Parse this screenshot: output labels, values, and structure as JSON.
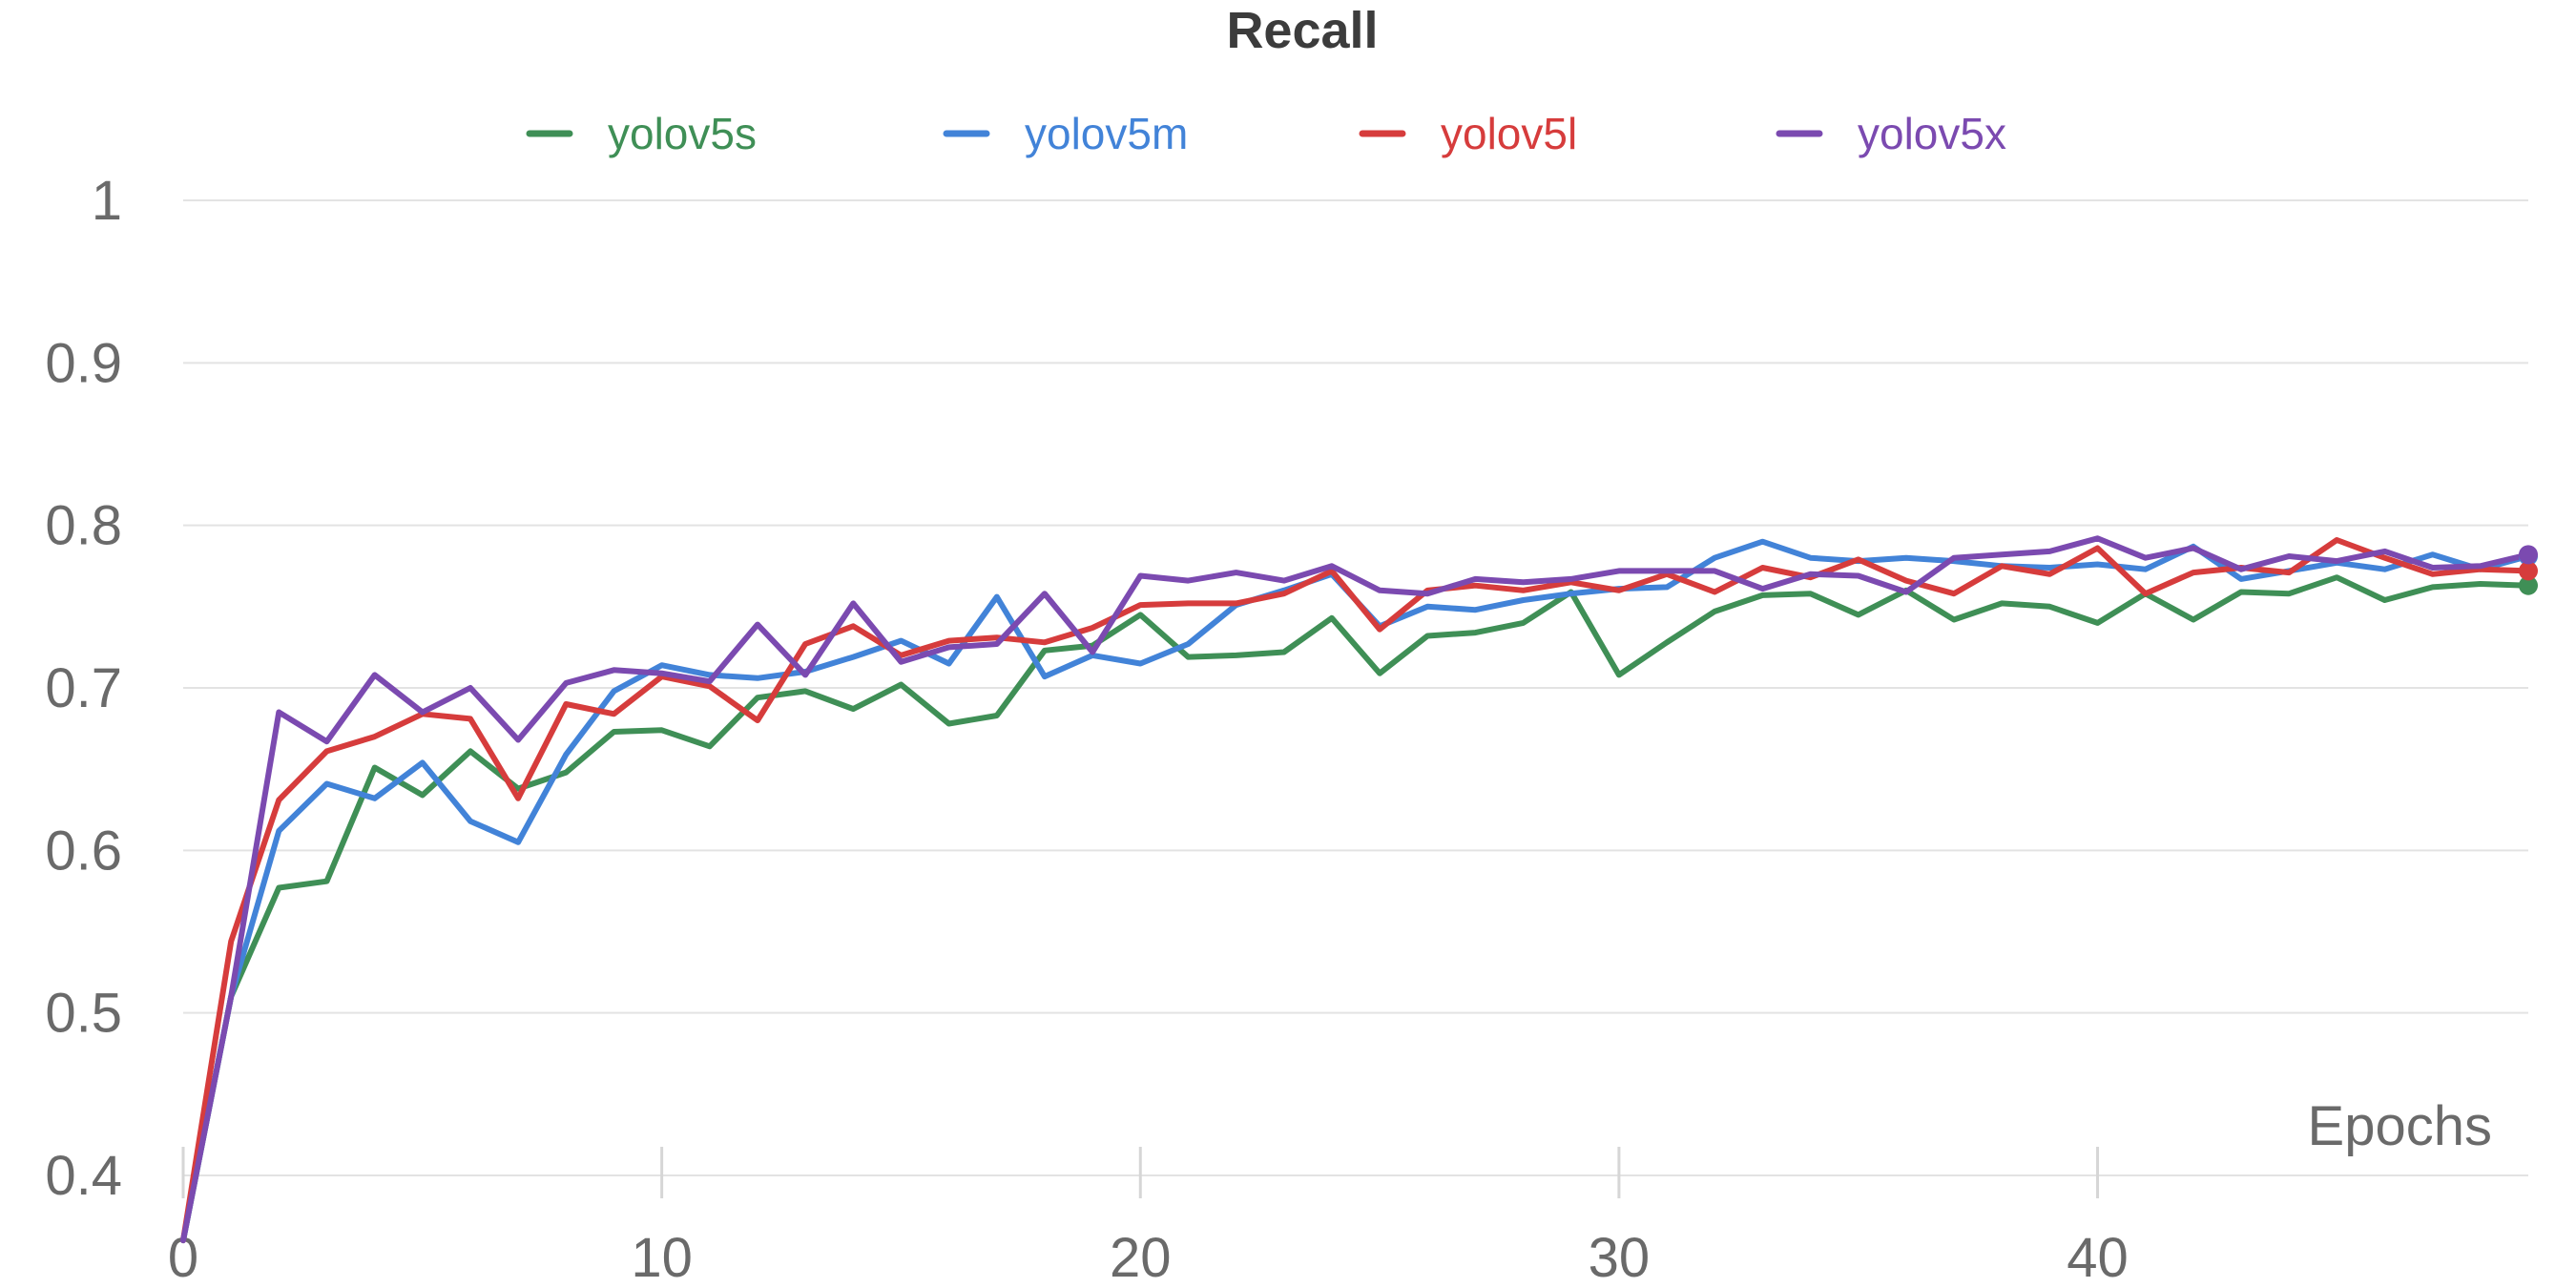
{
  "chart_data": {
    "type": "line",
    "title": "Recall",
    "xlabel": "Epochs",
    "ylabel": "",
    "xlim": [
      0,
      49
    ],
    "ylim": [
      0.4,
      1.0
    ],
    "yticks": [
      "0.4",
      "0.5",
      "0.6",
      "0.7",
      "0.8",
      "0.9",
      "1"
    ],
    "xticks": [
      "0",
      "10",
      "20",
      "30",
      "40"
    ],
    "grid": true,
    "legend": "top-center",
    "series": [
      {
        "name": "yolov5s",
        "color": "#3f8f56",
        "values": [
          0.36,
          0.51,
          0.577,
          0.581,
          0.651,
          0.634,
          0.661,
          0.638,
          0.648,
          0.673,
          0.674,
          0.664,
          0.694,
          0.698,
          0.687,
          0.702,
          0.678,
          0.683,
          0.723,
          0.726,
          0.745,
          0.719,
          0.72,
          0.722,
          0.743,
          0.709,
          0.732,
          0.734,
          0.74,
          0.759,
          0.708,
          0.728,
          0.747,
          0.757,
          0.758,
          0.745,
          0.76,
          0.742,
          0.752,
          0.75,
          0.74,
          0.758,
          0.742,
          0.759,
          0.758,
          0.768,
          0.754,
          0.762,
          0.764,
          0.763
        ]
      },
      {
        "name": "yolov5m",
        "color": "#4283d8",
        "values": [
          0.36,
          0.51,
          0.612,
          0.641,
          0.632,
          0.654,
          0.618,
          0.605,
          0.659,
          0.698,
          0.714,
          0.708,
          0.706,
          0.71,
          0.719,
          0.729,
          0.715,
          0.756,
          0.707,
          0.72,
          0.715,
          0.727,
          0.751,
          0.76,
          0.77,
          0.738,
          0.75,
          0.748,
          0.754,
          0.758,
          0.761,
          0.762,
          0.78,
          0.79,
          0.78,
          0.778,
          0.78,
          0.778,
          0.775,
          0.774,
          0.776,
          0.773,
          0.787,
          0.767,
          0.772,
          0.777,
          0.773,
          0.782,
          0.773,
          0.781
        ]
      },
      {
        "name": "yolov5l",
        "color": "#d63c3c",
        "values": [
          0.36,
          0.544,
          0.631,
          0.661,
          0.67,
          0.684,
          0.681,
          0.632,
          0.69,
          0.684,
          0.707,
          0.701,
          0.68,
          0.727,
          0.738,
          0.72,
          0.729,
          0.731,
          0.728,
          0.737,
          0.751,
          0.752,
          0.752,
          0.758,
          0.772,
          0.736,
          0.76,
          0.763,
          0.76,
          0.765,
          0.76,
          0.77,
          0.759,
          0.774,
          0.768,
          0.779,
          0.766,
          0.758,
          0.775,
          0.77,
          0.786,
          0.758,
          0.771,
          0.774,
          0.771,
          0.791,
          0.78,
          0.77,
          0.773,
          0.772
        ]
      },
      {
        "name": "yolov5x",
        "color": "#7b4ab0",
        "values": [
          0.36,
          0.51,
          0.685,
          0.667,
          0.708,
          0.685,
          0.7,
          0.668,
          0.703,
          0.711,
          0.709,
          0.704,
          0.739,
          0.708,
          0.752,
          0.716,
          0.725,
          0.727,
          0.758,
          0.722,
          0.769,
          0.766,
          0.771,
          0.766,
          0.775,
          0.76,
          0.758,
          0.767,
          0.765,
          0.767,
          0.772,
          0.772,
          0.772,
          0.761,
          0.77,
          0.769,
          0.759,
          0.78,
          0.782,
          0.784,
          0.792,
          0.78,
          0.786,
          0.773,
          0.781,
          0.778,
          0.784,
          0.774,
          0.775,
          0.782
        ]
      }
    ]
  }
}
